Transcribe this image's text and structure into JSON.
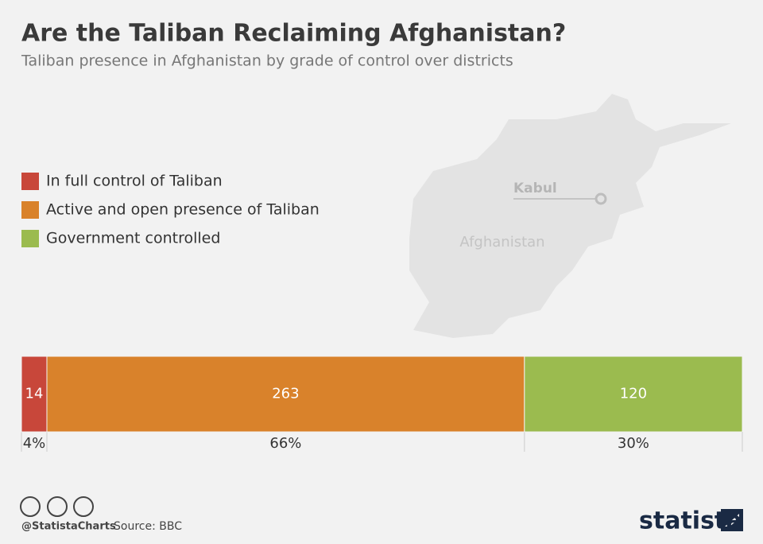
{
  "chart_data": {
    "type": "stacked-bar",
    "title": "Are the Taliban Reclaiming Afghanistan?",
    "subtitle": "Taliban presence in Afghanistan by grade of control over districts",
    "series": [
      {
        "name": "In full control of Taliban",
        "color": "#c8473a",
        "values": [
          14
        ],
        "percent_label": "4%"
      },
      {
        "name": "Active and open presence of Taliban",
        "color": "#d9822b",
        "values": [
          263
        ],
        "percent_label": "66%"
      },
      {
        "name": "Government controlled",
        "color": "#9bbb4f",
        "values": [
          120
        ],
        "percent_label": "30%"
      }
    ],
    "map_labels": {
      "city": "Kabul",
      "country": "Afghanistan"
    }
  },
  "footer": {
    "handle": "@StatistaCharts",
    "source": "Source: BBC",
    "brand": "statista"
  }
}
